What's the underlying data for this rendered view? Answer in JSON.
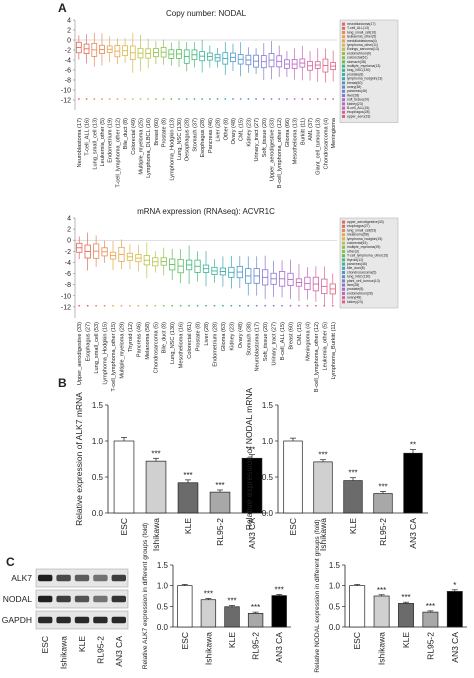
{
  "panel_labels": {
    "a": "A",
    "b": "B",
    "c": "C"
  },
  "colors": {
    "box": [
      "#e06a5a",
      "#e68a55",
      "#e8a54e",
      "#d9b84a",
      "#b7c447",
      "#8fc14c",
      "#5fbf5a",
      "#45b87a",
      "#3eb29a",
      "#3aa8b3",
      "#4d97c9",
      "#6a86d2",
      "#8878d2",
      "#a46ccc",
      "#c066bf",
      "#d2639f",
      "#de6280"
    ],
    "bar_fills": [
      "#ffffff",
      "#d0d0d0",
      "#6b6b6b",
      "#a8a8a8",
      "#000000"
    ],
    "legend_box": "#e8e8e8"
  },
  "charts": [
    {
      "title": "Copy number: NODAL",
      "type": "box",
      "ylim": [
        -14,
        4
      ],
      "yticks": [
        "4",
        "2",
        "0",
        "-2",
        "-4",
        "-6",
        "-8",
        "-10",
        "-12"
      ],
      "categories": [
        "Neuroblastoma (17)",
        "T-cell_ALL (16)",
        "Lung_small_cell (13)",
        "Leukemia_other (5)",
        "Endometrium (19)",
        "T-cell_lymphoma_other (12)",
        "Bile_duct (8)",
        "Colorectal (49)",
        "Multiple_myeloma (25)",
        "Lymphoma_DLBCL (16)",
        "Breast (60)",
        "Prostate (8)",
        "Lymphoma_Hodgkin (13)",
        "Lung_NSC (130)",
        "Oesophagus (28)",
        "Stomach (37)",
        "Esophagus (28)",
        "Pancreas (46)",
        "Liver (28)",
        "Other (8)",
        "Ovary (48)",
        "CML (15)",
        "Kidney (23)",
        "Urinary_tract (27)",
        "Soft_tissue (20)",
        "Upper_aerodigestive (33)",
        "B-cell_lymphoma_other (12)",
        "Glioma (66)",
        "Mesothelioma (13)",
        "Burkitt (11)",
        "AML (37)",
        "Giant_cell_tumour (13)",
        "Chondrosarcoma (4)",
        "Meningioma"
      ],
      "legend": [
        "neuroblastoma(17)",
        "T-cell_ALL(13)",
        "lung_small_cell(16)",
        "leukaemia_other(5)",
        "medulloblastoma(4)",
        "lymphoma_other(11)",
        "Ewings_sarcoma(13)",
        "endometrium(9)",
        "colorectal(61)",
        "stomach(38)",
        "multiple_myeloma(13)",
        "lung_NSC(130)",
        "prostate(8)",
        "lymphoma_hodgkin(13)",
        "breast(60)",
        "ovary(48)",
        "pancreas(46)",
        "liver(28)",
        "soft_tissue(20)",
        "kidney(23)",
        "B-cell_ALL(15)",
        "esophagus(28)",
        "upper_aero(33)"
      ]
    },
    {
      "title": "mRNA expression (RNAseq): ACVR1C",
      "type": "box",
      "ylim": [
        -14,
        4
      ],
      "yticks": [
        "4",
        "2",
        "0",
        "-2",
        "-4",
        "-6",
        "-8",
        "-10",
        "-12"
      ],
      "categories": [
        "Upper_aerodigestive (33)",
        "Esophagus (27)",
        "Lung_small_cell (53)",
        "Lymphoma_Hodgkin (15)",
        "T-cell_lymphoma_other (15)",
        "Multiple_myeloma (29)",
        "Thyroid (12)",
        "Pancreas (46)",
        "Melanoma (58)",
        "Chondrosarcoma (5)",
        "Bile_duct (8)",
        "Lung_NSC (130)",
        "Mesothelioma (16)",
        "Colorectal (61)",
        "Prostate (8)",
        "Liver (28)",
        "Endometrium (28)",
        "Glioma (63)",
        "Kidney (23)",
        "Ovary (48)",
        "Stomach (38)",
        "Neuroblastoma (17)",
        "Soft_tissue (20)",
        "Urinary_tract (27)",
        "B-cell_ALL (15)",
        "Breast (60)",
        "CML (15)",
        "Meningioma (4)",
        "B-cell_lymphoma_other (12)",
        "Leukemia_other (5)",
        "Lymphoma_Burkitt (11)"
      ],
      "legend": [
        "upper_aerodigestive(33)",
        "esophagus(27)",
        "lung_small_cell(53)",
        "melanoma(58)",
        "lymphoma_hodgkin(15)",
        "colorectal(61)",
        "multiple_myeloma(29)",
        "other(3)",
        "T-cell_lymphoma_other(15)",
        "thyroid(12)",
        "pancreas(46)",
        "bile_duct(8)",
        "chondrosarcoma(5)",
        "lung_NSC(130)",
        "plant_cell_tumour(13)",
        "liver(28)",
        "prostate(8)",
        "endometrium(28)",
        "ovary(48)",
        "kidney(23)"
      ]
    }
  ],
  "chart_data": [
    {
      "type": "bar",
      "ylabel": "Relative expression of ALK7 mRNA",
      "categories": [
        "ESC",
        "Ishikawa",
        "KLE",
        "RL95-2",
        "AN3 CA"
      ],
      "values": [
        1.0,
        0.72,
        0.42,
        0.29,
        0.76
      ],
      "errors": [
        0.05,
        0.04,
        0.04,
        0.03,
        0.05
      ],
      "significance": [
        "",
        "***",
        "***",
        "***",
        "**"
      ],
      "ylim": [
        0,
        1.5
      ],
      "yticks": [
        "0.0",
        "0.5",
        "1.0",
        "1.5"
      ]
    },
    {
      "type": "bar",
      "ylabel": "Relative expression of NODAL mRNA",
      "categories": [
        "ESC",
        "Ishikawa",
        "KLE",
        "RL95-2",
        "AN3 CA"
      ],
      "values": [
        1.0,
        0.71,
        0.45,
        0.27,
        0.83
      ],
      "errors": [
        0.04,
        0.03,
        0.04,
        0.03,
        0.05
      ],
      "significance": [
        "",
        "***",
        "***",
        "***",
        "**"
      ],
      "ylim": [
        0,
        1.5
      ],
      "yticks": [
        "0.0",
        "0.5",
        "1.0",
        "1.5"
      ]
    },
    {
      "type": "bar",
      "ylabel": "Relative ALK7 expression in different groups (fold)",
      "categories": [
        "ESC",
        "Ishikawa",
        "KLE",
        "RL95-2",
        "AN3 CA"
      ],
      "values": [
        1.0,
        0.66,
        0.49,
        0.33,
        0.76
      ],
      "errors": [
        0.03,
        0.03,
        0.03,
        0.03,
        0.03
      ],
      "significance": [
        "",
        "***",
        "***",
        "***",
        "***"
      ],
      "ylim": [
        0,
        1.5
      ],
      "yticks": [
        "0.0",
        "0.5",
        "1.0",
        "1.5"
      ]
    },
    {
      "type": "bar",
      "ylabel": "Relative NODAL expression in different groups (fold)",
      "categories": [
        "ESC",
        "Ishikawa",
        "KLE",
        "RL95-2",
        "AN3 CA"
      ],
      "values": [
        1.0,
        0.75,
        0.57,
        0.36,
        0.86
      ],
      "errors": [
        0.03,
        0.03,
        0.03,
        0.03,
        0.04
      ],
      "significance": [
        "",
        "***",
        "***",
        "***",
        "*"
      ],
      "ylim": [
        0,
        1.5
      ],
      "yticks": [
        "0.0",
        "0.5",
        "1.0",
        "1.5"
      ]
    }
  ],
  "blot": {
    "rows": [
      "ALK7",
      "NODAL",
      "GAPDH"
    ],
    "lanes": [
      "ESC",
      "Ishikawa",
      "KLE",
      "RL95-2",
      "AN3 CA"
    ]
  }
}
